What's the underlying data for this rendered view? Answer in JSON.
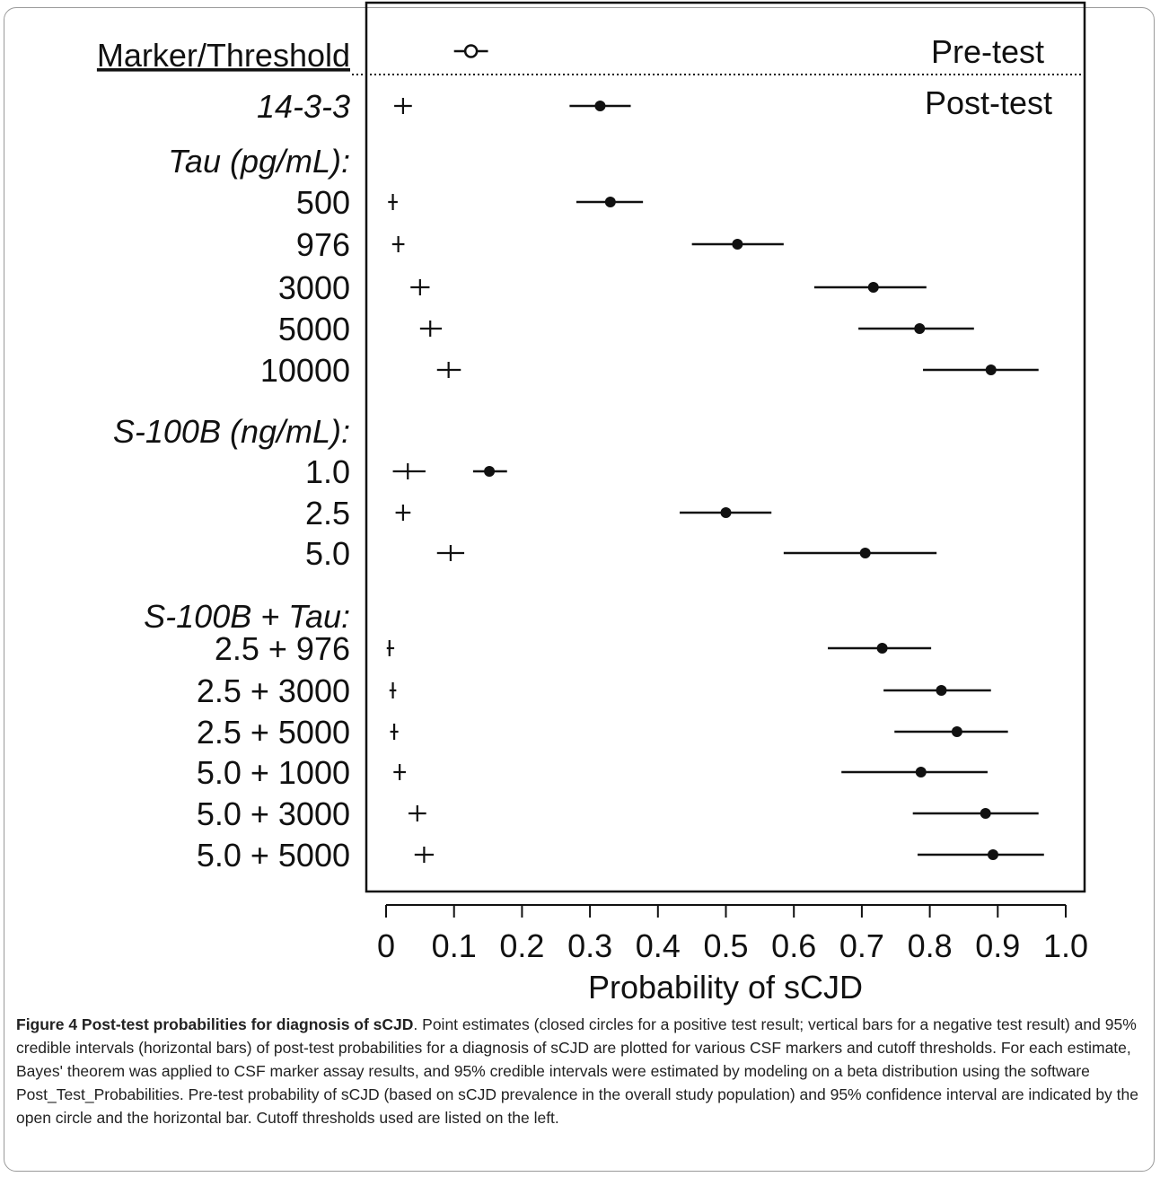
{
  "chart_data": {
    "type": "forest",
    "xlabel": "Probability of sCJD",
    "xlim": [
      0,
      1.0
    ],
    "x_ticks": [
      "0",
      "0.1",
      "0.2",
      "0.3",
      "0.4",
      "0.5",
      "0.6",
      "0.7",
      "0.8",
      "0.9",
      "1.0"
    ],
    "row_header": "Marker/Threshold",
    "panel_labels": {
      "pre": "Pre-test",
      "post": "Post-test"
    },
    "pretest": {
      "estimate": 0.125,
      "ci": [
        0.1,
        0.15
      ]
    },
    "rows": [
      {
        "label": "14-3-3",
        "italic": true,
        "negative": {
          "estimate": 0.025,
          "ci": [
            0.012,
            0.038
          ]
        },
        "positive": {
          "estimate": 0.315,
          "ci": [
            0.27,
            0.36
          ]
        }
      },
      {
        "label": "Tau (pg/mL):",
        "italic": true,
        "header": true
      },
      {
        "label": "500",
        "negative": {
          "estimate": 0.01,
          "ci": [
            0.003,
            0.017
          ]
        },
        "positive": {
          "estimate": 0.33,
          "ci": [
            0.28,
            0.378
          ]
        }
      },
      {
        "label": "976",
        "negative": {
          "estimate": 0.018,
          "ci": [
            0.009,
            0.027
          ]
        },
        "positive": {
          "estimate": 0.517,
          "ci": [
            0.45,
            0.585
          ]
        }
      },
      {
        "label": "3000",
        "negative": {
          "estimate": 0.05,
          "ci": [
            0.036,
            0.064
          ]
        },
        "positive": {
          "estimate": 0.717,
          "ci": [
            0.63,
            0.795
          ]
        }
      },
      {
        "label": "5000",
        "negative": {
          "estimate": 0.065,
          "ci": [
            0.05,
            0.082
          ]
        },
        "positive": {
          "estimate": 0.785,
          "ci": [
            0.695,
            0.865
          ]
        }
      },
      {
        "label": "10000",
        "negative": {
          "estimate": 0.092,
          "ci": [
            0.075,
            0.11
          ]
        },
        "positive": {
          "estimate": 0.89,
          "ci": [
            0.79,
            0.96
          ]
        }
      },
      {
        "label": "S-100B (ng/mL):",
        "italic": true,
        "header": true
      },
      {
        "label": "1.0",
        "negative": {
          "estimate": 0.032,
          "ci": [
            0.01,
            0.058
          ]
        },
        "positive": {
          "estimate": 0.152,
          "ci": [
            0.128,
            0.178
          ]
        }
      },
      {
        "label": "2.5",
        "negative": {
          "estimate": 0.025,
          "ci": [
            0.014,
            0.036
          ]
        },
        "positive": {
          "estimate": 0.5,
          "ci": [
            0.432,
            0.567
          ]
        }
      },
      {
        "label": "5.0",
        "negative": {
          "estimate": 0.095,
          "ci": [
            0.075,
            0.115
          ]
        },
        "positive": {
          "estimate": 0.705,
          "ci": [
            0.585,
            0.81
          ]
        }
      },
      {
        "label": "S-100B + Tau:",
        "italic": true,
        "header": true
      },
      {
        "label": "2.5 + 976",
        "negative": {
          "estimate": 0.005,
          "ci": [
            0.001,
            0.012
          ]
        },
        "positive": {
          "estimate": 0.73,
          "ci": [
            0.65,
            0.802
          ]
        }
      },
      {
        "label": "2.5 + 3000",
        "negative": {
          "estimate": 0.01,
          "ci": [
            0.005,
            0.015
          ]
        },
        "positive": {
          "estimate": 0.817,
          "ci": [
            0.732,
            0.89
          ]
        }
      },
      {
        "label": "2.5 + 5000",
        "negative": {
          "estimate": 0.012,
          "ci": [
            0.006,
            0.018
          ]
        },
        "positive": {
          "estimate": 0.84,
          "ci": [
            0.748,
            0.915
          ]
        }
      },
      {
        "label": "5.0 + 1000",
        "negative": {
          "estimate": 0.02,
          "ci": [
            0.011,
            0.029
          ]
        },
        "positive": {
          "estimate": 0.787,
          "ci": [
            0.67,
            0.885
          ]
        }
      },
      {
        "label": "5.0 + 3000",
        "negative": {
          "estimate": 0.046,
          "ci": [
            0.033,
            0.059
          ]
        },
        "positive": {
          "estimate": 0.882,
          "ci": [
            0.775,
            0.96
          ]
        }
      },
      {
        "label": "5.0 + 5000",
        "negative": {
          "estimate": 0.056,
          "ci": [
            0.042,
            0.07
          ]
        },
        "positive": {
          "estimate": 0.893,
          "ci": [
            0.782,
            0.968
          ]
        }
      }
    ]
  },
  "caption": {
    "title": "Figure 4 Post-test probabilities for diagnosis of sCJD",
    "body": ". Point estimates (closed circles for a positive test result; vertical bars for a negative test result) and 95% credible intervals (horizontal bars) of post-test probabilities for a diagnosis of sCJD are plotted for various CSF markers and cutoff thresholds. For each estimate, Bayes' theorem was applied to CSF marker assay results, and 95% credible intervals were estimated by modeling on a beta distribution using the software Post_Test_Probabilities. Pre-test probability of sCJD (based on sCJD prevalence in the overall study population) and 95% confidence interval are indicated by the open circle and the horizontal bar. Cutoff thresholds used are listed on the left."
  }
}
